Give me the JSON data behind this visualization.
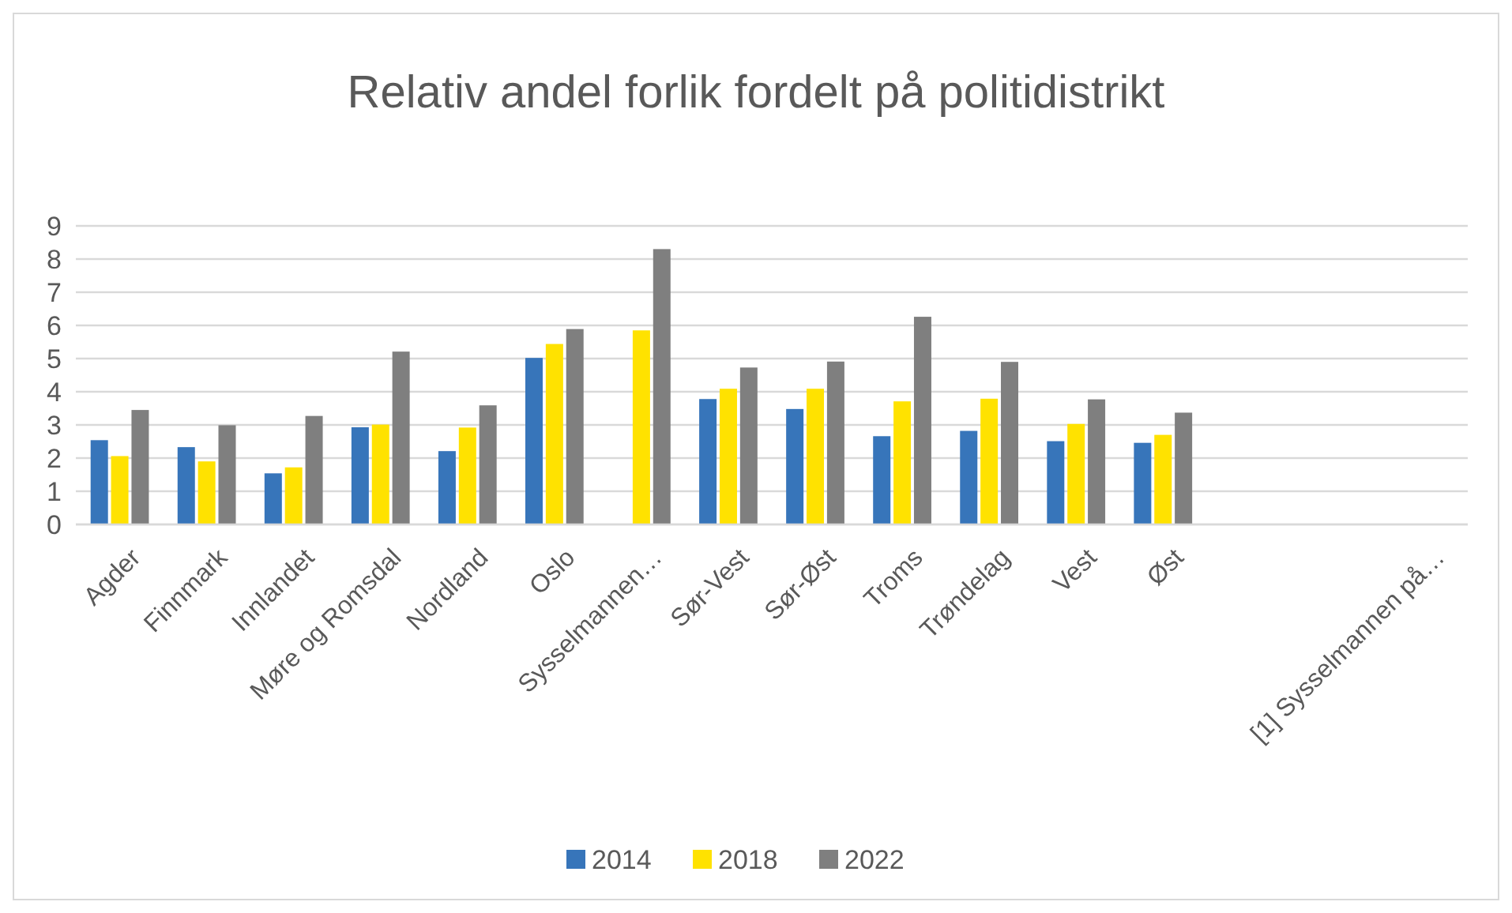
{
  "chart_data": {
    "type": "bar",
    "title": "Relativ andel forlik fordelt på politidistrikt",
    "categories": [
      "Agder",
      "Finnmark",
      "Innlandet",
      "Møre og Romsdal",
      "Nordland",
      "Oslo",
      "Sysselmannen…",
      "Sør-Vest",
      "Sør-Øst",
      "Troms",
      "Trøndelag",
      "Vest",
      "Øst",
      null,
      null,
      "[1] Sysselmannen på…"
    ],
    "series": [
      {
        "name": "2014",
        "color": "#3775ba",
        "values": [
          2.54,
          2.33,
          1.54,
          2.93,
          2.21,
          5.02,
          null,
          3.78,
          3.48,
          2.66,
          2.82,
          2.51,
          2.46,
          null,
          null,
          null
        ]
      },
      {
        "name": "2018",
        "color": "#ffe200",
        "values": [
          2.06,
          1.9,
          1.72,
          3.01,
          2.92,
          5.44,
          5.85,
          4.09,
          4.09,
          3.71,
          3.79,
          3.03,
          2.7,
          null,
          null,
          null
        ]
      },
      {
        "name": "2022",
        "color": "#7f7f7f",
        "values": [
          3.45,
          2.99,
          3.27,
          5.21,
          3.59,
          5.89,
          8.3,
          4.73,
          4.91,
          6.26,
          4.9,
          3.77,
          3.37,
          null,
          null,
          null
        ]
      }
    ],
    "ylim": [
      0,
      9
    ],
    "yticks": [
      0,
      1,
      2,
      3,
      4,
      5,
      6,
      7,
      8,
      9
    ],
    "grid": "y",
    "legend": "bottom"
  }
}
